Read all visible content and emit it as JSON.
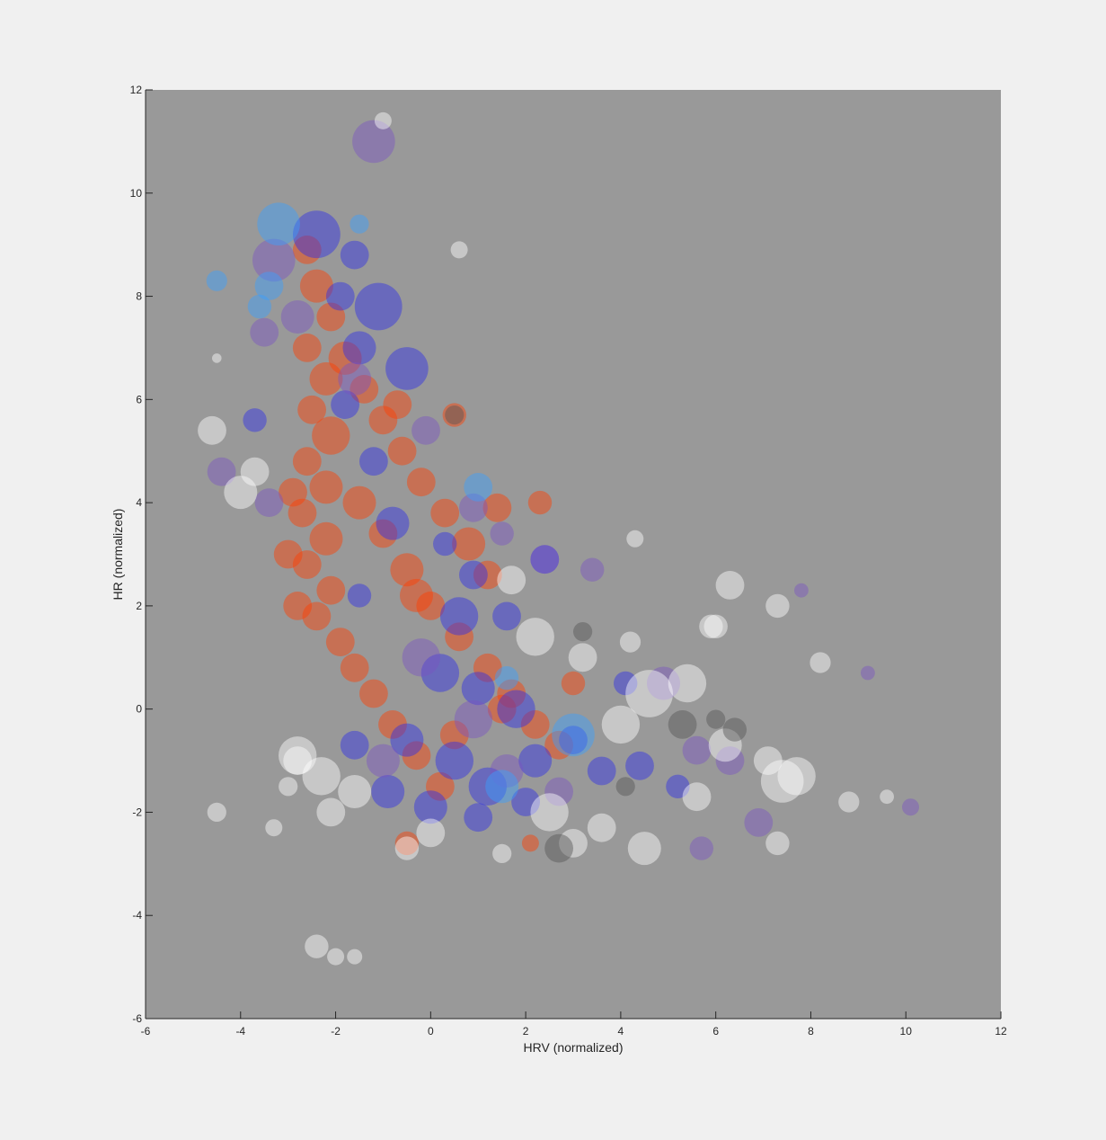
{
  "figure": {
    "background": "#f0f0f0",
    "axes_background": "#999999"
  },
  "chart_data": {
    "type": "scatter",
    "title": "",
    "xlabel": "HRV (normalized)",
    "ylabel": "HR (normalized)",
    "xlim": [
      -6,
      12
    ],
    "ylim": [
      -6,
      12
    ],
    "x_ticks": [
      "-6",
      "-4",
      "-2",
      "0",
      "2",
      "4",
      "6",
      "8",
      "10",
      "12"
    ],
    "y_ticks": [
      "-6",
      "-4",
      "-2",
      "0",
      "2",
      "4",
      "6",
      "8",
      "10",
      "12"
    ],
    "grid": false,
    "legend": "none",
    "series": [
      {
        "color": "#ff3d00",
        "points": [
          [
            -2.6,
            8.9,
            0.3
          ],
          [
            -2.4,
            8.2,
            0.35
          ],
          [
            -2.1,
            7.6,
            0.3
          ],
          [
            -2.6,
            7.0,
            0.3
          ],
          [
            -2.2,
            6.4,
            0.35
          ],
          [
            -2.5,
            5.8,
            0.3
          ],
          [
            -2.1,
            5.3,
            0.4
          ],
          [
            -2.6,
            4.8,
            0.3
          ],
          [
            -2.2,
            4.3,
            0.35
          ],
          [
            -2.7,
            3.8,
            0.3
          ],
          [
            -2.2,
            3.3,
            0.35
          ],
          [
            -2.6,
            2.8,
            0.3
          ],
          [
            -2.1,
            2.3,
            0.3
          ],
          [
            -2.4,
            1.8,
            0.3
          ],
          [
            -1.9,
            1.3,
            0.3
          ],
          [
            -1.6,
            0.8,
            0.3
          ],
          [
            -1.2,
            0.3,
            0.3
          ],
          [
            -0.8,
            -0.3,
            0.3
          ],
          [
            -0.3,
            -0.9,
            0.3
          ],
          [
            0.2,
            -1.5,
            0.3
          ],
          [
            -1.8,
            6.8,
            0.35
          ],
          [
            -1.4,
            6.2,
            0.3
          ],
          [
            -1.0,
            5.6,
            0.3
          ],
          [
            -0.6,
            5.0,
            0.3
          ],
          [
            -0.2,
            4.4,
            0.3
          ],
          [
            0.3,
            3.8,
            0.3
          ],
          [
            0.8,
            3.2,
            0.35
          ],
          [
            1.2,
            2.6,
            0.3
          ],
          [
            -1.5,
            4.0,
            0.35
          ],
          [
            -1.0,
            3.4,
            0.3
          ],
          [
            -0.5,
            2.7,
            0.35
          ],
          [
            0.0,
            2.0,
            0.3
          ],
          [
            0.6,
            1.4,
            0.3
          ],
          [
            1.2,
            0.8,
            0.3
          ],
          [
            1.7,
            0.3,
            0.3
          ],
          [
            2.2,
            -0.3,
            0.3
          ],
          [
            2.7,
            -0.7,
            0.3
          ],
          [
            -2.9,
            4.2,
            0.3
          ],
          [
            -3.0,
            3.0,
            0.3
          ],
          [
            -2.8,
            2.0,
            0.3
          ],
          [
            1.4,
            3.9,
            0.3
          ],
          [
            2.3,
            4.0,
            0.25
          ],
          [
            -0.3,
            2.2,
            0.35
          ],
          [
            1.5,
            0.0,
            0.3
          ],
          [
            0.5,
            -0.5,
            0.3
          ],
          [
            2.1,
            -2.6,
            0.18
          ],
          [
            -0.5,
            -2.6,
            0.25
          ],
          [
            3.0,
            0.5,
            0.25
          ],
          [
            -0.7,
            5.9,
            0.3
          ],
          [
            0.5,
            5.7,
            0.25
          ]
        ]
      },
      {
        "color": "#2f2fe6",
        "points": [
          [
            -2.4,
            9.2,
            0.5
          ],
          [
            -1.6,
            8.8,
            0.3
          ],
          [
            -1.1,
            7.8,
            0.5
          ],
          [
            -0.5,
            6.6,
            0.45
          ],
          [
            -3.7,
            5.6,
            0.25
          ],
          [
            -1.9,
            8.0,
            0.3
          ],
          [
            -1.5,
            7.0,
            0.35
          ],
          [
            -1.8,
            5.9,
            0.3
          ],
          [
            -1.2,
            4.8,
            0.3
          ],
          [
            -0.8,
            3.6,
            0.35
          ],
          [
            -1.5,
            2.2,
            0.25
          ],
          [
            0.6,
            1.8,
            0.4
          ],
          [
            1.6,
            1.8,
            0.3
          ],
          [
            0.2,
            0.7,
            0.4
          ],
          [
            1.0,
            0.4,
            0.35
          ],
          [
            1.8,
            0.0,
            0.4
          ],
          [
            -0.5,
            -0.6,
            0.35
          ],
          [
            0.5,
            -1.0,
            0.4
          ],
          [
            1.2,
            -1.5,
            0.4
          ],
          [
            2.2,
            -1.0,
            0.35
          ],
          [
            3.0,
            -0.6,
            0.3
          ],
          [
            3.6,
            -1.2,
            0.3
          ],
          [
            4.4,
            -1.1,
            0.3
          ],
          [
            -1.6,
            -0.7,
            0.3
          ],
          [
            -0.9,
            -1.6,
            0.35
          ],
          [
            0.0,
            -1.9,
            0.35
          ],
          [
            1.0,
            -2.1,
            0.3
          ],
          [
            2.0,
            -1.8,
            0.3
          ],
          [
            5.2,
            -1.5,
            0.25
          ],
          [
            4.1,
            0.5,
            0.25
          ],
          [
            0.9,
            2.6,
            0.3
          ],
          [
            0.3,
            3.2,
            0.25
          ],
          [
            2.4,
            2.9,
            0.3
          ]
        ]
      },
      {
        "color": "#7a55c2",
        "points": [
          [
            -1.2,
            11.0,
            0.45
          ],
          [
            -3.3,
            8.7,
            0.45
          ],
          [
            -2.8,
            7.6,
            0.35
          ],
          [
            -3.5,
            7.3,
            0.3
          ],
          [
            -1.6,
            6.4,
            0.35
          ],
          [
            -0.1,
            5.4,
            0.3
          ],
          [
            0.9,
            3.9,
            0.3
          ],
          [
            1.5,
            3.4,
            0.25
          ],
          [
            2.4,
            2.9,
            0.3
          ],
          [
            4.9,
            0.5,
            0.35
          ],
          [
            5.6,
            -0.8,
            0.3
          ],
          [
            6.3,
            -1.0,
            0.3
          ],
          [
            6.9,
            -2.2,
            0.3
          ],
          [
            5.7,
            -2.7,
            0.25
          ],
          [
            -4.4,
            4.6,
            0.3
          ],
          [
            -0.2,
            1.0,
            0.4
          ],
          [
            0.9,
            -0.2,
            0.4
          ],
          [
            -1.0,
            -1.0,
            0.35
          ],
          [
            1.6,
            -1.2,
            0.35
          ],
          [
            2.7,
            -1.6,
            0.3
          ],
          [
            10.1,
            -1.9,
            0.18
          ],
          [
            9.2,
            0.7,
            0.15
          ],
          [
            7.8,
            2.3,
            0.15
          ],
          [
            3.4,
            2.7,
            0.25
          ],
          [
            -3.4,
            4.0,
            0.3
          ]
        ]
      },
      {
        "color": "#3aa0ff",
        "points": [
          [
            -4.5,
            8.3,
            0.22
          ],
          [
            -3.2,
            9.4,
            0.45
          ],
          [
            -3.4,
            8.2,
            0.3
          ],
          [
            -3.6,
            7.8,
            0.25
          ],
          [
            -1.5,
            9.4,
            0.2
          ],
          [
            1.0,
            4.3,
            0.3
          ],
          [
            3.0,
            -0.5,
            0.45
          ],
          [
            1.6,
            0.6,
            0.25
          ],
          [
            1.5,
            -1.5,
            0.35
          ]
        ]
      },
      {
        "color": "#ffffff",
        "points": [
          [
            -1.0,
            11.4,
            0.18
          ],
          [
            0.6,
            8.9,
            0.18
          ],
          [
            -4.5,
            6.8,
            0.1
          ],
          [
            -4.6,
            5.4,
            0.3
          ],
          [
            -4.0,
            4.2,
            0.35
          ],
          [
            -3.7,
            4.6,
            0.3
          ],
          [
            -2.8,
            -0.9,
            0.4
          ],
          [
            -2.3,
            -1.3,
            0.4
          ],
          [
            -1.6,
            -1.6,
            0.35
          ],
          [
            -2.1,
            -2.0,
            0.3
          ],
          [
            -3.0,
            -1.5,
            0.2
          ],
          [
            -4.5,
            -2.0,
            0.2
          ],
          [
            -3.3,
            -2.3,
            0.18
          ],
          [
            -2.4,
            -4.6,
            0.25
          ],
          [
            -2.0,
            -4.8,
            0.18
          ],
          [
            -1.6,
            -4.8,
            0.16
          ],
          [
            1.7,
            2.5,
            0.3
          ],
          [
            2.2,
            1.4,
            0.4
          ],
          [
            3.2,
            1.0,
            0.3
          ],
          [
            4.2,
            1.3,
            0.22
          ],
          [
            4.6,
            0.3,
            0.5
          ],
          [
            5.4,
            0.5,
            0.4
          ],
          [
            4.0,
            -0.3,
            0.4
          ],
          [
            3.6,
            -2.3,
            0.3
          ],
          [
            4.5,
            -2.7,
            0.35
          ],
          [
            5.6,
            -1.7,
            0.3
          ],
          [
            6.2,
            -0.7,
            0.35
          ],
          [
            7.4,
            -1.4,
            0.45
          ],
          [
            7.1,
            -1.0,
            0.3
          ],
          [
            7.7,
            -1.3,
            0.4
          ],
          [
            6.3,
            2.4,
            0.3
          ],
          [
            7.3,
            2.0,
            0.25
          ],
          [
            6.0,
            1.6,
            0.25
          ],
          [
            8.2,
            0.9,
            0.22
          ],
          [
            8.8,
            -1.8,
            0.22
          ],
          [
            7.3,
            -2.6,
            0.25
          ],
          [
            9.6,
            -1.7,
            0.15
          ],
          [
            5.9,
            1.6,
            0.25
          ],
          [
            2.5,
            -2.0,
            0.4
          ],
          [
            3.0,
            -2.6,
            0.3
          ],
          [
            1.5,
            -2.8,
            0.2
          ],
          [
            0.0,
            -2.4,
            0.3
          ],
          [
            -0.5,
            -2.7,
            0.25
          ],
          [
            4.3,
            3.3,
            0.18
          ],
          [
            -2.8,
            -1.0,
            0.3
          ]
        ]
      },
      {
        "color": "#555555",
        "points": [
          [
            0.5,
            5.7,
            0.2
          ],
          [
            2.7,
            -2.7,
            0.3
          ],
          [
            5.3,
            -0.3,
            0.3
          ],
          [
            6.4,
            -0.4,
            0.25
          ],
          [
            6.0,
            -0.2,
            0.2
          ],
          [
            3.2,
            1.5,
            0.2
          ],
          [
            4.1,
            -1.5,
            0.2
          ]
        ]
      }
    ]
  }
}
